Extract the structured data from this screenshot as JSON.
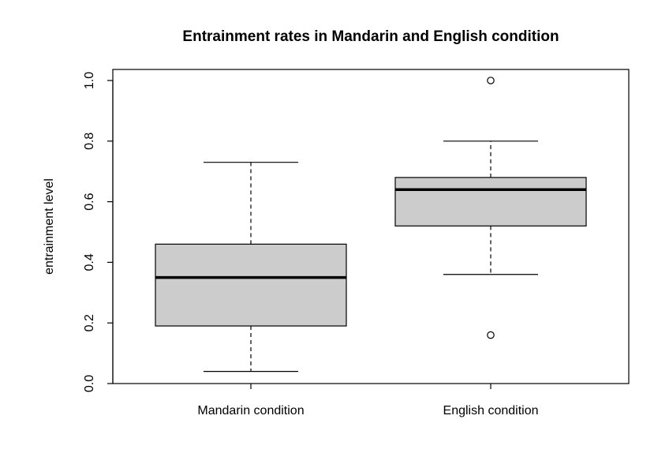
{
  "chart_data": {
    "type": "boxplot",
    "title": "Entrainment rates in Mandarin and English condition",
    "xlabel": "",
    "ylabel": "entrainment level",
    "ylim": [
      0.0,
      1.0
    ],
    "yticks": [
      "0.0",
      "0.2",
      "0.4",
      "0.6",
      "0.8",
      "1.0"
    ],
    "grid": false,
    "legend": "none",
    "box_fill": "#cccccc",
    "line_color": "#000000",
    "categories": [
      "Mandarin condition",
      "English condition"
    ],
    "boxes": [
      {
        "category": "Mandarin condition",
        "min": 0.04,
        "q1": 0.19,
        "median": 0.35,
        "q3": 0.46,
        "max": 0.73,
        "outliers": []
      },
      {
        "category": "English condition",
        "min": 0.36,
        "q1": 0.52,
        "median": 0.64,
        "q3": 0.68,
        "max": 0.8,
        "outliers": [
          1.0,
          0.16
        ]
      }
    ]
  }
}
